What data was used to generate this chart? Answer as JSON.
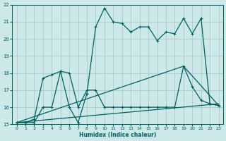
{
  "xlabel": "Humidex (Indice chaleur)",
  "bg_color": "#cce8e8",
  "grid_color": "#aacccc",
  "line_color": "#006060",
  "xlim": [
    -0.5,
    23.5
  ],
  "ylim": [
    15,
    22
  ],
  "xticks": [
    0,
    1,
    2,
    3,
    4,
    5,
    6,
    7,
    8,
    9,
    10,
    11,
    12,
    13,
    14,
    15,
    16,
    17,
    18,
    19,
    20,
    21,
    22,
    23
  ],
  "yticks": [
    15,
    16,
    17,
    18,
    19,
    20,
    21,
    22
  ],
  "line1_x": [
    0,
    1,
    2,
    3,
    4,
    5,
    6,
    7,
    8,
    9,
    10,
    11,
    12,
    13,
    14,
    15,
    16,
    17,
    18,
    19,
    20,
    21,
    22,
    23
  ],
  "line1_y": [
    15.1,
    15.1,
    15.3,
    17.7,
    17.9,
    18.1,
    18.0,
    16.0,
    17.0,
    17.0,
    16.0,
    16.0,
    16.0,
    16.0,
    16.0,
    16.0,
    16.0,
    16.0,
    16.0,
    18.4,
    17.2,
    16.4,
    16.2,
    16.1
  ],
  "line2_x": [
    0,
    1,
    2,
    3,
    4,
    5,
    6,
    7,
    8,
    9,
    10,
    11,
    12,
    13,
    14,
    15,
    16,
    17,
    18,
    19,
    20,
    21,
    22,
    23
  ],
  "line2_y": [
    15.1,
    15.1,
    15.1,
    16.0,
    16.0,
    18.1,
    16.0,
    15.1,
    16.8,
    20.7,
    21.8,
    21.0,
    20.9,
    20.4,
    20.7,
    20.7,
    19.9,
    20.4,
    20.3,
    21.2,
    20.3,
    21.2,
    16.2,
    16.1
  ],
  "line3_x": [
    0,
    23
  ],
  "line3_y": [
    15.1,
    16.2
  ],
  "line4_x": [
    0,
    19,
    23
  ],
  "line4_y": [
    15.1,
    18.4,
    16.1
  ]
}
